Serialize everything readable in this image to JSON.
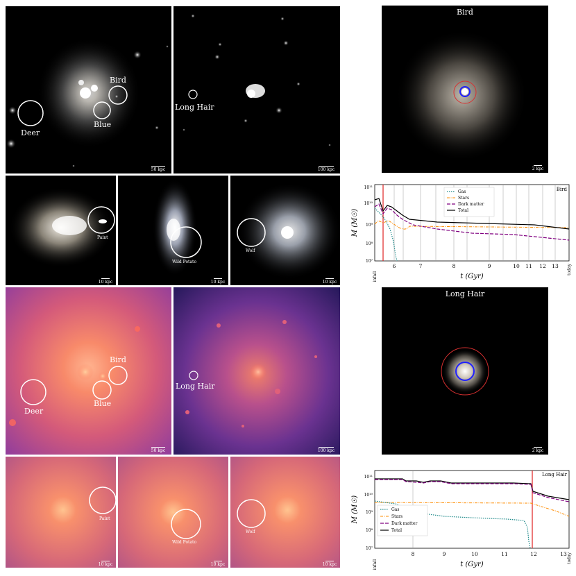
{
  "labels": {
    "deer": "Deer",
    "blue": "Blue",
    "bird": "Bird",
    "long_hair": "Long Hair",
    "paint": "Paint",
    "wild_potato": "Wild Potato",
    "wolf": "Wolf"
  },
  "scales": {
    "s50": "50 kpc",
    "s100": "100 kpc",
    "s10": "10 kpc",
    "s2": "2 kpc"
  },
  "plots": {
    "bird": {
      "title": "Bird",
      "ylabel": "M (M☉)",
      "xlabel": "t (Gyr)",
      "legend": [
        "Gas",
        "Stars",
        "Dark matter",
        "Total"
      ],
      "yticks": [
        "10¹¹",
        "10¹⁰",
        "10⁹",
        "10⁸",
        "10⁷"
      ],
      "xticks": [
        "6",
        "7",
        "8",
        "9",
        "10",
        "11",
        "12",
        "13"
      ],
      "left_label": "infall",
      "right_label": "today"
    },
    "long_hair": {
      "title": "Long Hair",
      "ylabel": "M (M☉)",
      "xlabel": "t (Gyr)",
      "legend": [
        "Gas",
        "Stars",
        "Dark matter",
        "Total"
      ],
      "yticks": [
        "10¹¹",
        "10¹⁰",
        "10⁹",
        "10⁸",
        "10⁷"
      ],
      "xticks": [
        "8",
        "9",
        "10",
        "11",
        "12",
        "13"
      ],
      "left_label": "infall",
      "right_label": "today"
    }
  },
  "colors": {
    "gas": "#1f8a8a",
    "stars": "#ff8c00",
    "dark_matter": "#800080",
    "total": "#000000",
    "infall_line": "#e02020"
  }
}
